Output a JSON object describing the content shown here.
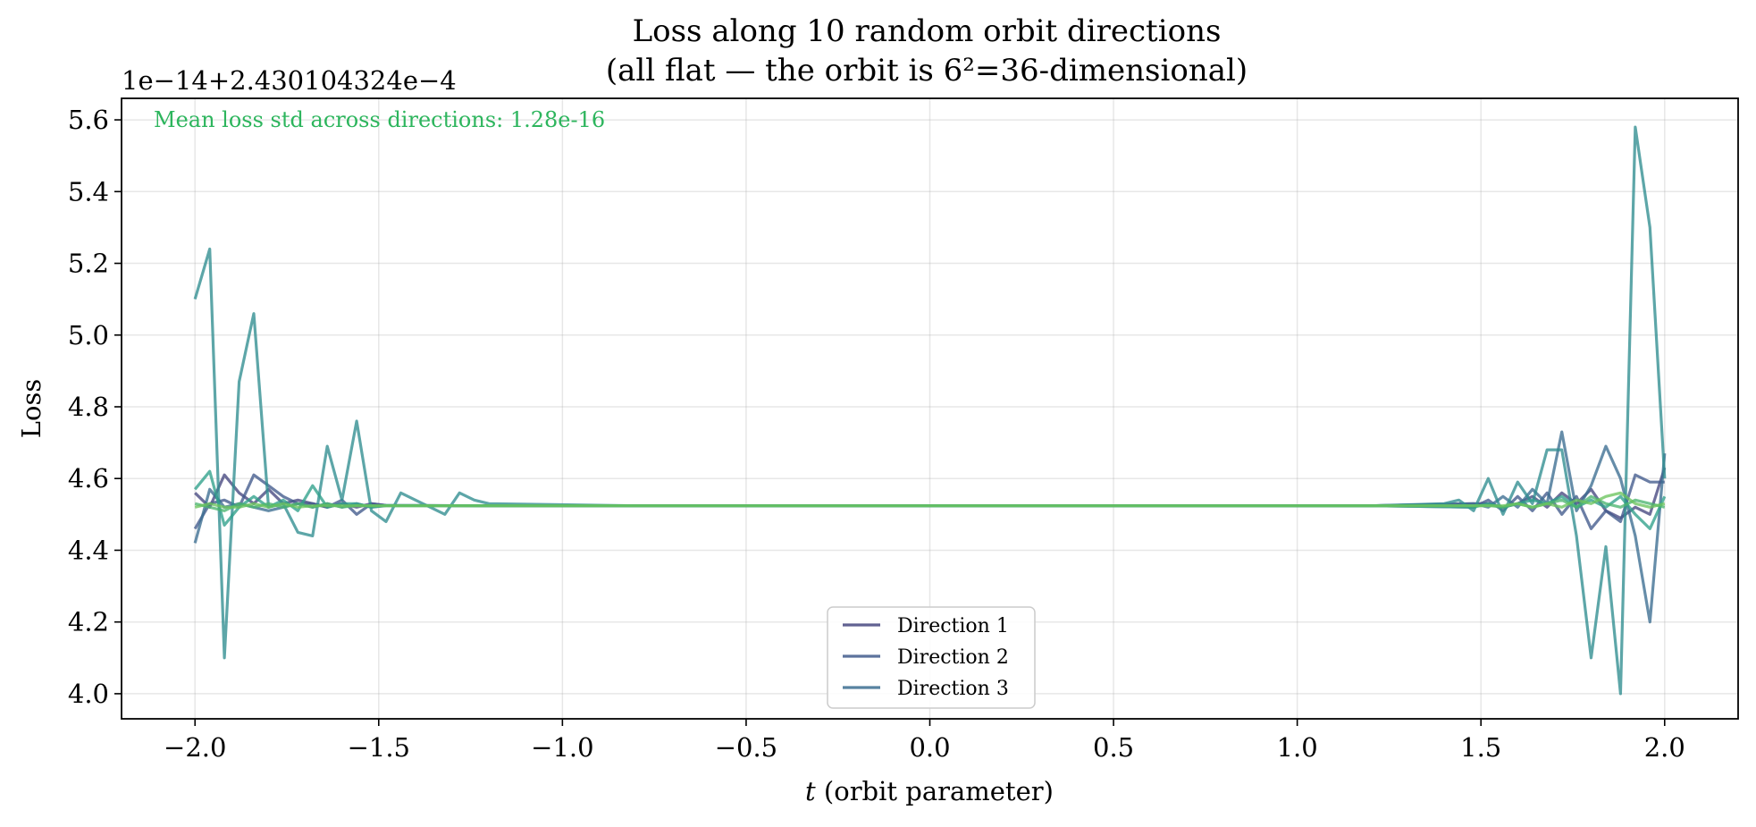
{
  "chart_data": {
    "type": "line",
    "title": "Loss along 10 random orbit directions",
    "subtitle": "(all flat — the orbit is 6²=36-dimensional)",
    "xlabel_italic": "t",
    "xlabel_rest": " (orbit parameter)",
    "ylabel": "Loss",
    "y_offset_text": "1e−14+2.430104324e−4",
    "annotation": "Mean loss std across directions: 1.28e-16",
    "annotation_color": "#2db55d",
    "xlim": [
      -2.2,
      2.2
    ],
    "ylim": [
      3.93,
      5.66
    ],
    "x_ticks": [
      -2.0,
      -1.5,
      -1.0,
      -0.5,
      0.0,
      0.5,
      1.0,
      1.5,
      2.0
    ],
    "x_tick_labels": [
      "−2.0",
      "−1.5",
      "−1.0",
      "−0.5",
      "0.0",
      "0.5",
      "1.0",
      "1.5",
      "2.0"
    ],
    "y_ticks": [
      4.0,
      4.2,
      4.4,
      4.6,
      4.8,
      5.0,
      5.2,
      5.4,
      5.6
    ],
    "y_tick_labels": [
      "4.0",
      "4.2",
      "4.4",
      "4.6",
      "4.8",
      "5.0",
      "5.2",
      "5.4",
      "5.6"
    ],
    "grid": true,
    "legend_position": "lower-center",
    "legend": [
      {
        "name": "Direction 1",
        "color": "#45467f"
      },
      {
        "name": "Direction 2",
        "color": "#415a8c"
      },
      {
        "name": "Direction 3",
        "color": "#3b6d91"
      }
    ],
    "series": [
      {
        "name": "Direction 1",
        "color": "#45467f",
        "x": [
          -2.0,
          -1.96,
          -1.92,
          -1.88,
          -1.84,
          -1.8,
          -1.76,
          -1.72,
          -1.68,
          -1.64,
          -1.6,
          -1.56,
          -1.52,
          -1.48,
          -1.2,
          -0.8,
          0.0,
          0.8,
          1.2,
          1.48,
          1.52,
          1.56,
          1.6,
          1.64,
          1.68,
          1.72,
          1.76,
          1.8,
          1.84,
          1.88,
          1.92,
          1.96,
          2.0
        ],
        "y": [
          4.56,
          4.52,
          4.61,
          4.56,
          4.53,
          4.57,
          4.53,
          4.54,
          4.53,
          4.52,
          4.53,
          4.52,
          4.53,
          4.525,
          4.524,
          4.524,
          4.524,
          4.524,
          4.524,
          4.53,
          4.53,
          4.52,
          4.53,
          4.55,
          4.52,
          4.56,
          4.53,
          4.57,
          4.51,
          4.49,
          4.52,
          4.5,
          4.63
        ]
      },
      {
        "name": "Direction 2",
        "color": "#415a8c",
        "x": [
          -2.0,
          -1.96,
          -1.92,
          -1.88,
          -1.84,
          -1.8,
          -1.76,
          -1.72,
          -1.68,
          -1.64,
          -1.6,
          -1.56,
          -1.52,
          -1.48,
          -1.2,
          -0.8,
          0.0,
          0.8,
          1.2,
          1.48,
          1.52,
          1.56,
          1.6,
          1.64,
          1.68,
          1.72,
          1.76,
          1.8,
          1.84,
          1.88,
          1.92,
          1.96,
          2.0
        ],
        "y": [
          4.46,
          4.53,
          4.54,
          4.52,
          4.61,
          4.58,
          4.55,
          4.53,
          4.53,
          4.52,
          4.54,
          4.5,
          4.53,
          4.525,
          4.524,
          4.524,
          4.524,
          4.524,
          4.524,
          4.52,
          4.54,
          4.51,
          4.55,
          4.51,
          4.56,
          4.5,
          4.55,
          4.46,
          4.51,
          4.48,
          4.61,
          4.59,
          4.59
        ]
      },
      {
        "name": "Direction 3",
        "color": "#3b6d91",
        "x": [
          -2.0,
          -1.96,
          -1.92,
          -1.88,
          -1.84,
          -1.8,
          -1.76,
          -1.72,
          -1.68,
          -1.64,
          -1.6,
          -1.56,
          -1.52,
          -1.48,
          -1.2,
          -0.8,
          0.0,
          0.8,
          1.2,
          1.48,
          1.52,
          1.56,
          1.6,
          1.64,
          1.68,
          1.72,
          1.76,
          1.8,
          1.84,
          1.88,
          1.92,
          1.96,
          2.0
        ],
        "y": [
          4.42,
          4.57,
          4.52,
          4.53,
          4.52,
          4.51,
          4.52,
          4.53,
          4.52,
          4.53,
          4.52,
          4.53,
          4.52,
          4.524,
          4.524,
          4.524,
          4.524,
          4.524,
          4.524,
          4.53,
          4.52,
          4.55,
          4.52,
          4.57,
          4.53,
          4.73,
          4.51,
          4.58,
          4.69,
          4.6,
          4.44,
          4.2,
          4.67
        ]
      },
      {
        "color": "#2f8d8f",
        "x": [
          -2.0,
          -1.96,
          -1.92,
          -1.88,
          -1.84,
          -1.8,
          -1.76,
          -1.72,
          -1.68,
          -1.64,
          -1.6,
          -1.56,
          -1.52,
          -1.48,
          -1.44,
          -1.4,
          -1.36,
          -1.32,
          -1.28,
          -1.24,
          -1.2,
          -0.8,
          0.0,
          0.8,
          1.2,
          1.4,
          1.44,
          1.48,
          1.52,
          1.56,
          1.6,
          1.64,
          1.68,
          1.72,
          1.76,
          1.8,
          1.84,
          1.88,
          1.92,
          1.96,
          2.0
        ],
        "y": [
          5.1,
          5.24,
          4.1,
          4.87,
          5.06,
          4.52,
          4.53,
          4.45,
          4.44,
          4.69,
          4.54,
          4.76,
          4.51,
          4.48,
          4.56,
          4.54,
          4.52,
          4.5,
          4.56,
          4.54,
          4.53,
          4.524,
          4.524,
          4.524,
          4.524,
          4.53,
          4.54,
          4.51,
          4.6,
          4.5,
          4.59,
          4.53,
          4.68,
          4.68,
          4.44,
          4.1,
          4.41,
          4.0,
          5.58,
          5.3,
          4.6
        ]
      },
      {
        "color": "#2fa08a",
        "x": [
          -2.0,
          -1.96,
          -1.92,
          -1.88,
          -1.84,
          -1.8,
          -1.76,
          -1.72,
          -1.68,
          -1.64,
          -1.6,
          -1.56,
          -1.52,
          -1.48,
          -1.2,
          -0.8,
          0.0,
          0.8,
          1.2,
          1.48,
          1.52,
          1.56,
          1.6,
          1.64,
          1.68,
          1.72,
          1.76,
          1.8,
          1.84,
          1.88,
          1.92,
          1.96,
          2.0
        ],
        "y": [
          4.57,
          4.62,
          4.47,
          4.52,
          4.55,
          4.52,
          4.54,
          4.51,
          4.58,
          4.52,
          4.53,
          4.53,
          4.52,
          4.525,
          4.524,
          4.524,
          4.524,
          4.524,
          4.524,
          4.52,
          4.53,
          4.52,
          4.53,
          4.54,
          4.53,
          4.55,
          4.52,
          4.54,
          4.52,
          4.55,
          4.5,
          4.46,
          4.55
        ]
      },
      {
        "color": "#4cb56f",
        "x": [
          -2.0,
          -1.96,
          -1.92,
          -1.88,
          -1.84,
          -1.8,
          -1.76,
          -1.72,
          -1.68,
          -1.64,
          -1.6,
          -1.56,
          -1.52,
          -1.48,
          -1.2,
          -0.8,
          0.0,
          0.8,
          1.2,
          1.48,
          1.52,
          1.56,
          1.6,
          1.64,
          1.68,
          1.72,
          1.76,
          1.8,
          1.84,
          1.88,
          1.92,
          1.96,
          2.0
        ],
        "y": [
          4.53,
          4.52,
          4.51,
          4.53,
          4.52,
          4.53,
          4.52,
          4.53,
          4.52,
          4.53,
          4.52,
          4.525,
          4.524,
          4.524,
          4.524,
          4.524,
          4.524,
          4.524,
          4.524,
          4.524,
          4.525,
          4.52,
          4.53,
          4.52,
          4.53,
          4.54,
          4.52,
          4.55,
          4.53,
          4.52,
          4.54,
          4.53,
          4.52
        ]
      },
      {
        "color": "#6cc45e",
        "x": [
          -2.0,
          -1.96,
          -1.92,
          -1.88,
          -1.84,
          -1.8,
          -1.76,
          -1.72,
          -1.68,
          -1.64,
          -1.6,
          -1.56,
          -1.52,
          -1.48,
          -1.2,
          -0.8,
          0.0,
          0.8,
          1.2,
          1.48,
          1.52,
          1.56,
          1.6,
          1.64,
          1.68,
          1.72,
          1.76,
          1.8,
          1.84,
          1.88,
          1.92,
          1.96,
          2.0
        ],
        "y": [
          4.52,
          4.53,
          4.52,
          4.52,
          4.53,
          4.52,
          4.53,
          4.52,
          4.524,
          4.524,
          4.524,
          4.524,
          4.524,
          4.524,
          4.524,
          4.524,
          4.524,
          4.524,
          4.524,
          4.524,
          4.524,
          4.524,
          4.53,
          4.52,
          4.53,
          4.52,
          4.54,
          4.53,
          4.55,
          4.56,
          4.53,
          4.52,
          4.53
        ]
      }
    ]
  }
}
